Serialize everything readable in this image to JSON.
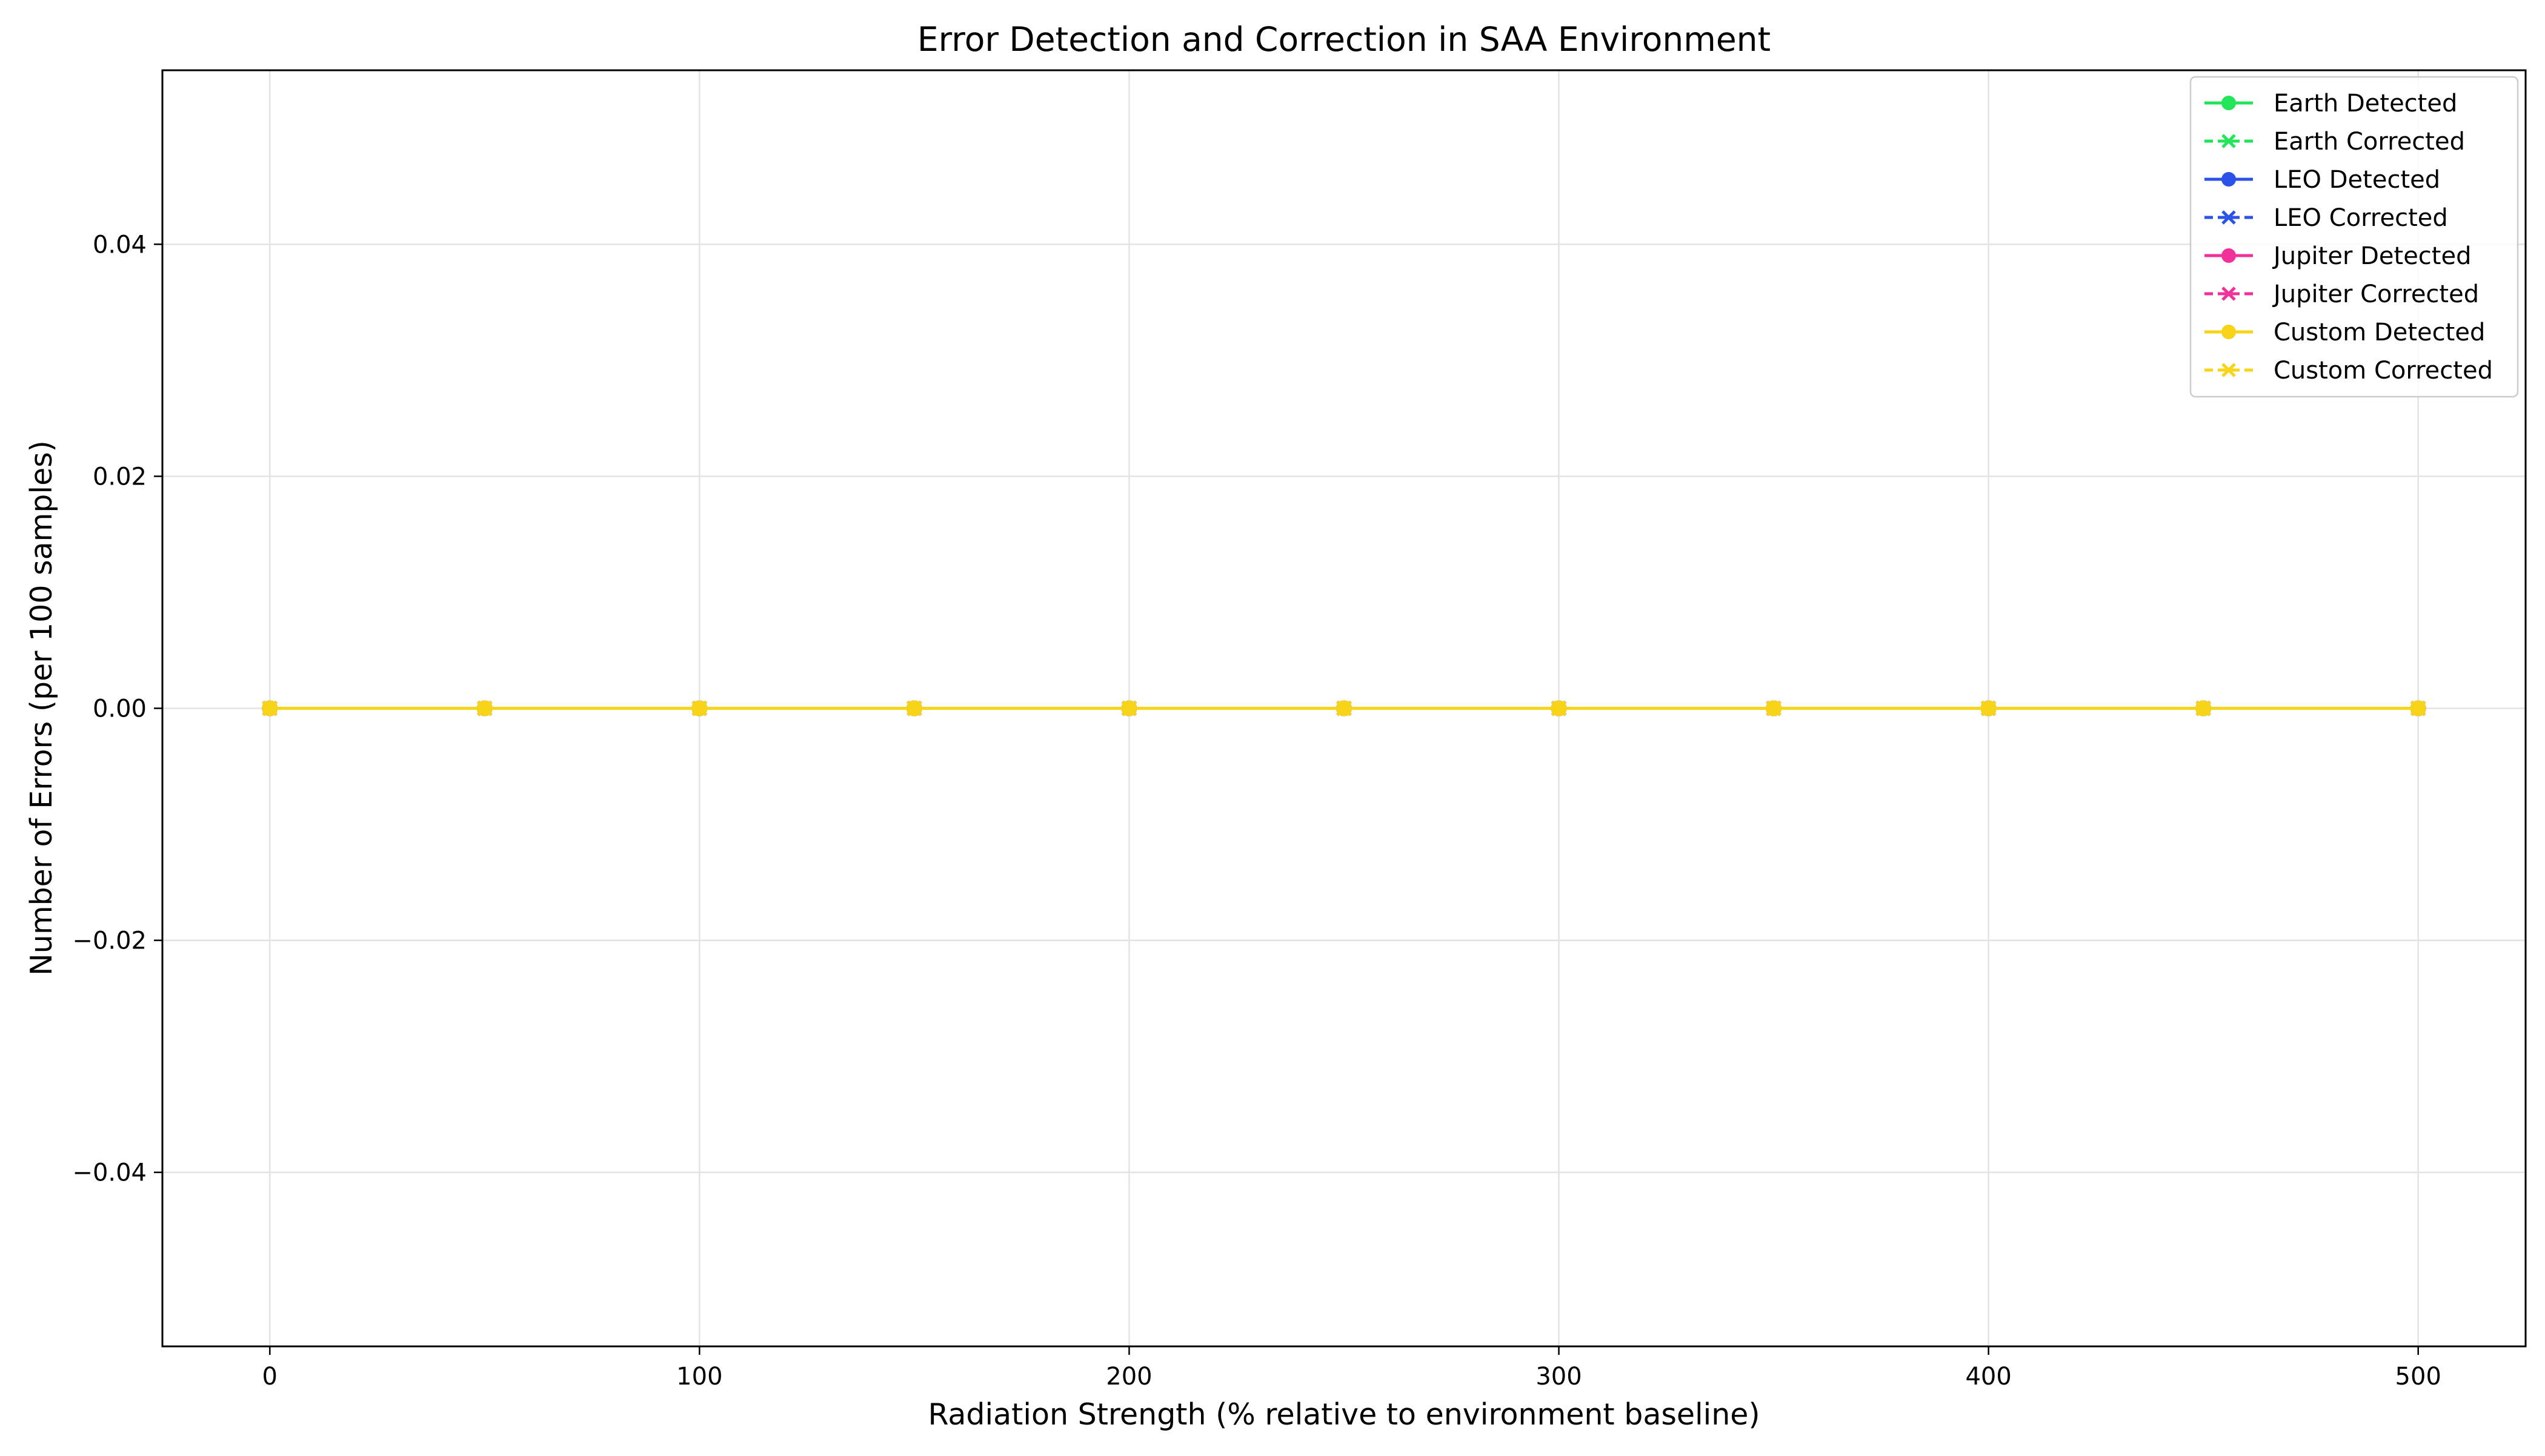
{
  "chart_data": {
    "type": "line",
    "title": "Error Detection and Correction in SAA Environment",
    "xlabel": "Radiation Strength (% relative to environment baseline)",
    "ylabel": "Number of Errors (per 100 samples)",
    "xlim": [
      -25,
      525
    ],
    "ylim": [
      -0.055,
      0.055
    ],
    "xticks": [
      0,
      100,
      200,
      300,
      400,
      500
    ],
    "yticks": [
      -0.04,
      -0.02,
      0.0,
      0.02,
      0.04
    ],
    "ytick_labels": [
      "−0.04",
      "−0.02",
      "0.00",
      "0.02",
      "0.04"
    ],
    "grid": true,
    "legend_position": "top-right",
    "x": [
      0,
      50,
      100,
      150,
      200,
      250,
      300,
      350,
      400,
      450,
      500
    ],
    "series": [
      {
        "name": "Earth Detected",
        "color": "#22e55a",
        "linestyle": "solid",
        "marker": "circle",
        "values": [
          0,
          0,
          0,
          0,
          0,
          0,
          0,
          0,
          0,
          0,
          0
        ]
      },
      {
        "name": "Earth Corrected",
        "color": "#22e55a",
        "linestyle": "dashed",
        "marker": "x",
        "values": [
          0,
          0,
          0,
          0,
          0,
          0,
          0,
          0,
          0,
          0,
          0
        ]
      },
      {
        "name": "LEO Detected",
        "color": "#2a52e8",
        "linestyle": "solid",
        "marker": "circle",
        "values": [
          0,
          0,
          0,
          0,
          0,
          0,
          0,
          0,
          0,
          0,
          0
        ]
      },
      {
        "name": "LEO Corrected",
        "color": "#2a52e8",
        "linestyle": "dashed",
        "marker": "x",
        "values": [
          0,
          0,
          0,
          0,
          0,
          0,
          0,
          0,
          0,
          0,
          0
        ]
      },
      {
        "name": "Jupiter Detected",
        "color": "#f2309a",
        "linestyle": "solid",
        "marker": "circle",
        "values": [
          0,
          0,
          0,
          0,
          0,
          0,
          0,
          0,
          0,
          0,
          0
        ]
      },
      {
        "name": "Jupiter Corrected",
        "color": "#f2309a",
        "linestyle": "dashed",
        "marker": "x",
        "values": [
          0,
          0,
          0,
          0,
          0,
          0,
          0,
          0,
          0,
          0,
          0
        ]
      },
      {
        "name": "Custom Detected",
        "color": "#f7d417",
        "linestyle": "solid",
        "marker": "circle",
        "values": [
          0,
          0,
          0,
          0,
          0,
          0,
          0,
          0,
          0,
          0,
          0
        ]
      },
      {
        "name": "Custom Corrected",
        "color": "#f7d417",
        "linestyle": "dashed",
        "marker": "x",
        "values": [
          0,
          0,
          0,
          0,
          0,
          0,
          0,
          0,
          0,
          0,
          0
        ]
      }
    ]
  }
}
